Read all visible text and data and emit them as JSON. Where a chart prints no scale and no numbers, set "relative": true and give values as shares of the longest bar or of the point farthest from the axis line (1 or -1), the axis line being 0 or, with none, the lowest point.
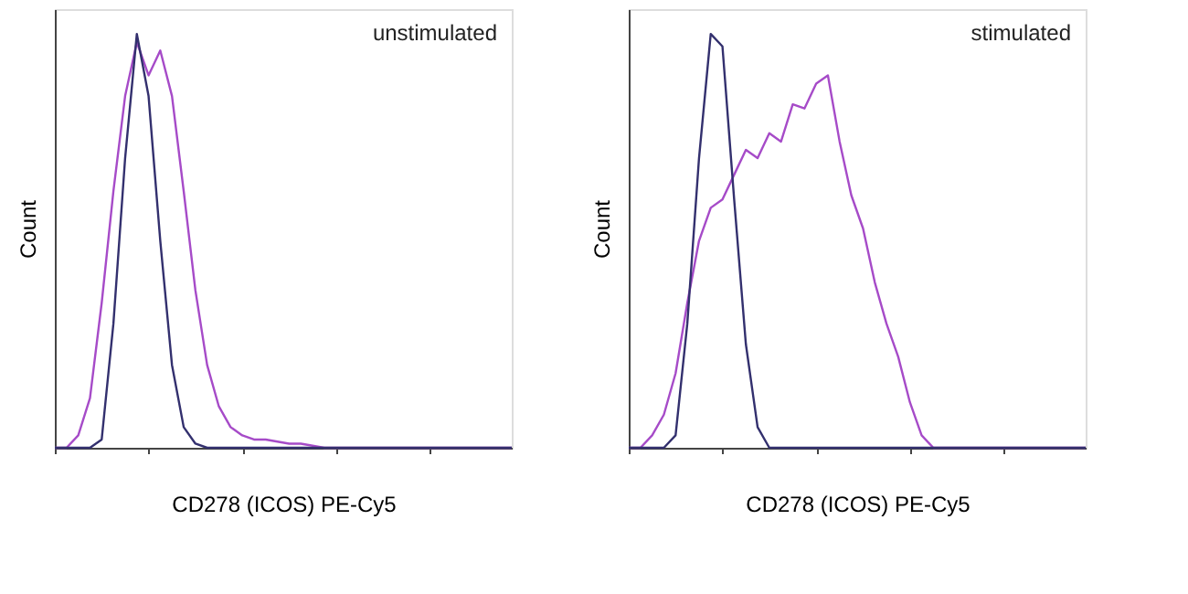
{
  "chart_data": [
    {
      "type": "line",
      "relative": true,
      "xlabel": "CD278 (ICOS) PE-Cy5",
      "ylabel": "Count",
      "annotations": [
        "unstimulated"
      ],
      "tick_labels": false,
      "grid": false,
      "categories": [
        null,
        null,
        null,
        null,
        null,
        null,
        null,
        null,
        null,
        null,
        null,
        null,
        null,
        null,
        null,
        null,
        null,
        null,
        null,
        null,
        null,
        null,
        null,
        null,
        null,
        null,
        null,
        null,
        null,
        null,
        null,
        null,
        null,
        null,
        null,
        null,
        null,
        null,
        null,
        null
      ],
      "series": [
        {
          "color": "#a64bc8",
          "values": [
            0,
            0,
            0.03,
            0.12,
            0.35,
            0.62,
            0.85,
            0.98,
            0.9,
            0.96,
            0.85,
            0.62,
            0.38,
            0.2,
            0.1,
            0.05,
            0.03,
            0.02,
            0.02,
            0.015,
            0.01,
            0.01,
            0.005,
            0,
            0,
            0,
            0,
            0,
            0,
            0,
            0,
            0,
            0,
            0,
            0,
            0,
            0,
            0,
            0,
            0
          ]
        },
        {
          "color": "#33306e",
          "values": [
            0,
            0,
            0,
            0,
            0.02,
            0.3,
            0.7,
            1.0,
            0.85,
            0.5,
            0.2,
            0.05,
            0.01,
            0,
            0,
            0,
            0,
            0,
            0,
            0,
            0,
            0,
            0,
            0,
            0,
            0,
            0,
            0,
            0,
            0,
            0,
            0,
            0,
            0,
            0,
            0,
            0,
            0,
            0,
            0
          ]
        }
      ]
    },
    {
      "type": "line",
      "relative": true,
      "xlabel": "CD278 (ICOS) PE-Cy5",
      "ylabel": "Count",
      "annotations": [
        "stimulated"
      ],
      "tick_labels": false,
      "grid": false,
      "categories": [
        null,
        null,
        null,
        null,
        null,
        null,
        null,
        null,
        null,
        null,
        null,
        null,
        null,
        null,
        null,
        null,
        null,
        null,
        null,
        null,
        null,
        null,
        null,
        null,
        null,
        null,
        null,
        null,
        null,
        null,
        null,
        null,
        null,
        null,
        null,
        null,
        null,
        null,
        null,
        null
      ],
      "series": [
        {
          "color": "#a64bc8",
          "values": [
            0,
            0,
            0.03,
            0.08,
            0.18,
            0.35,
            0.5,
            0.58,
            0.6,
            0.66,
            0.72,
            0.7,
            0.76,
            0.74,
            0.83,
            0.82,
            0.88,
            0.9,
            0.74,
            0.61,
            0.53,
            0.4,
            0.3,
            0.22,
            0.11,
            0.03,
            0,
            0,
            0,
            0,
            0,
            0,
            0,
            0,
            0,
            0,
            0,
            0,
            0,
            0
          ]
        },
        {
          "color": "#33306e",
          "values": [
            0,
            0,
            0,
            0,
            0.03,
            0.3,
            0.7,
            1.0,
            0.97,
            0.6,
            0.25,
            0.05,
            0,
            0,
            0,
            0,
            0,
            0,
            0,
            0,
            0,
            0,
            0,
            0,
            0,
            0,
            0,
            0,
            0,
            0,
            0,
            0,
            0,
            0,
            0,
            0,
            0,
            0,
            0,
            0
          ]
        }
      ]
    }
  ]
}
